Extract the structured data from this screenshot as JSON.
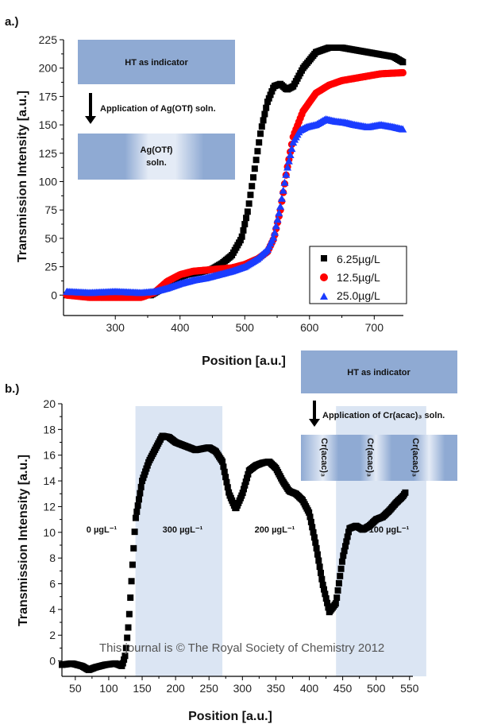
{
  "panel_a": {
    "label": "a.)",
    "inset": {
      "top_text": "HT as indicator",
      "arrow_text": "Application of Ag(OTf) soln.",
      "bottom_text_1": "Ag(OTf)",
      "bottom_text_2": "soln."
    }
  },
  "panel_b": {
    "label": "b.)",
    "inset": {
      "top_text": "HT as indicator",
      "arrow_text": "Application of Cr(acac)₃ soln.",
      "strip_label": "Cr(acac)₃"
    },
    "concentration_labels": [
      "0 µgL⁻¹",
      "300 µgL⁻¹",
      "200 µgL⁻¹",
      "100 µgL⁻¹"
    ]
  },
  "watermark": "This journal is © The Royal Society of Chemistry 2012",
  "colors": {
    "black": "#000000",
    "red": "#ff0000",
    "blue": "#1a3cff",
    "inset_fill": "#8faad3",
    "band_fill": "#dbe5f3"
  },
  "chart_data": [
    {
      "type": "scatter",
      "xlabel": "Position [a.u.]",
      "ylabel": "Transmission Intensity [a.u.]",
      "xlim": [
        220,
        745
      ],
      "ylim": [
        -18,
        225
      ],
      "xticks": [
        300,
        400,
        500,
        600,
        700
      ],
      "yticks": [
        0,
        25,
        50,
        75,
        100,
        125,
        150,
        175,
        200,
        225
      ],
      "grid": false,
      "legend_position": "bottom-right",
      "series": [
        {
          "name": "6.25µg/L",
          "marker": "square",
          "color": "#000000",
          "points": [
            [
              225,
              0
            ],
            [
              260,
              0
            ],
            [
              300,
              0
            ],
            [
              340,
              0
            ],
            [
              355,
              0
            ],
            [
              370,
              5
            ],
            [
              390,
              13
            ],
            [
              410,
              18
            ],
            [
              430,
              20
            ],
            [
              450,
              23
            ],
            [
              465,
              28
            ],
            [
              480,
              35
            ],
            [
              495,
              50
            ],
            [
              505,
              75
            ],
            [
              515,
              110
            ],
            [
              525,
              145
            ],
            [
              535,
              170
            ],
            [
              545,
              184
            ],
            [
              555,
              186
            ],
            [
              565,
              181
            ],
            [
              575,
              184
            ],
            [
              590,
              200
            ],
            [
              610,
              214
            ],
            [
              630,
              218
            ],
            [
              650,
              218
            ],
            [
              670,
              216
            ],
            [
              700,
              213
            ],
            [
              730,
              210
            ],
            [
              745,
              205
            ]
          ]
        },
        {
          "name": "12.5µg/L",
          "marker": "circle",
          "color": "#ff0000",
          "points": [
            [
              225,
              0
            ],
            [
              260,
              -2
            ],
            [
              300,
              -2
            ],
            [
              340,
              -2
            ],
            [
              360,
              2
            ],
            [
              380,
              12
            ],
            [
              400,
              18
            ],
            [
              420,
              21
            ],
            [
              440,
              22
            ],
            [
              460,
              23
            ],
            [
              480,
              24
            ],
            [
              500,
              27
            ],
            [
              520,
              32
            ],
            [
              535,
              38
            ],
            [
              545,
              50
            ],
            [
              555,
              75
            ],
            [
              565,
              110
            ],
            [
              575,
              140
            ],
            [
              590,
              162
            ],
            [
              610,
              178
            ],
            [
              630,
              185
            ],
            [
              650,
              189
            ],
            [
              680,
              192
            ],
            [
              710,
              195
            ],
            [
              745,
              196
            ]
          ]
        },
        {
          "name": "25.0µg/L",
          "marker": "triangle",
          "color": "#1a3cff",
          "points": [
            [
              225,
              3
            ],
            [
              260,
              2
            ],
            [
              300,
              3
            ],
            [
              340,
              2
            ],
            [
              360,
              3
            ],
            [
              380,
              6
            ],
            [
              400,
              10
            ],
            [
              420,
              13
            ],
            [
              440,
              15
            ],
            [
              460,
              18
            ],
            [
              480,
              21
            ],
            [
              500,
              25
            ],
            [
              520,
              32
            ],
            [
              535,
              40
            ],
            [
              545,
              52
            ],
            [
              555,
              78
            ],
            [
              565,
              110
            ],
            [
              575,
              135
            ],
            [
              585,
              145
            ],
            [
              595,
              148
            ],
            [
              610,
              150
            ],
            [
              625,
              155
            ],
            [
              640,
              153
            ],
            [
              655,
              152
            ],
            [
              670,
              150
            ],
            [
              690,
              148
            ],
            [
              710,
              150
            ],
            [
              730,
              148
            ],
            [
              745,
              146
            ]
          ]
        }
      ]
    },
    {
      "type": "scatter",
      "xlabel": "Position [a.u.]",
      "ylabel": "Transmission Intensity [a.u.]",
      "xlim": [
        30,
        555
      ],
      "ylim": [
        -1.2,
        20
      ],
      "xticks": [
        50,
        100,
        150,
        200,
        250,
        300,
        350,
        400,
        450,
        500,
        550
      ],
      "yticks": [
        0,
        2,
        4,
        6,
        8,
        10,
        12,
        14,
        16,
        18,
        20
      ],
      "grid": false,
      "shaded_bands": [
        [
          140,
          270
        ],
        [
          440,
          575
        ]
      ],
      "series": [
        {
          "name": "",
          "marker": "square",
          "color": "#000000",
          "points": [
            [
              30,
              -0.3
            ],
            [
              45,
              -0.2
            ],
            [
              60,
              -0.4
            ],
            [
              70,
              -0.7
            ],
            [
              80,
              -0.5
            ],
            [
              95,
              -0.3
            ],
            [
              110,
              -0.2
            ],
            [
              120,
              -0.4
            ],
            [
              125,
              0.5
            ],
            [
              130,
              3
            ],
            [
              135,
              7
            ],
            [
              140,
              11
            ],
            [
              150,
              14
            ],
            [
              160,
              15.5
            ],
            [
              170,
              16.5
            ],
            [
              180,
              17.5
            ],
            [
              190,
              17.4
            ],
            [
              200,
              17
            ],
            [
              210,
              16.8
            ],
            [
              220,
              16.6
            ],
            [
              230,
              16.4
            ],
            [
              240,
              16.5
            ],
            [
              250,
              16.6
            ],
            [
              260,
              16.3
            ],
            [
              270,
              15.5
            ],
            [
              280,
              13
            ],
            [
              290,
              11.8
            ],
            [
              300,
              13
            ],
            [
              310,
              14.8
            ],
            [
              320,
              15.2
            ],
            [
              330,
              15.4
            ],
            [
              340,
              15.5
            ],
            [
              350,
              15
            ],
            [
              360,
              14
            ],
            [
              370,
              13.2
            ],
            [
              380,
              13
            ],
            [
              390,
              12.5
            ],
            [
              400,
              11.5
            ],
            [
              410,
              9
            ],
            [
              420,
              6
            ],
            [
              430,
              3.8
            ],
            [
              440,
              4.5
            ],
            [
              450,
              8
            ],
            [
              460,
              10.3
            ],
            [
              470,
              10.5
            ],
            [
              480,
              10.2
            ],
            [
              490,
              10.5
            ],
            [
              500,
              11
            ],
            [
              510,
              11.2
            ],
            [
              520,
              11.7
            ],
            [
              530,
              12.3
            ],
            [
              540,
              12.8
            ],
            [
              545,
              13.2
            ]
          ]
        }
      ]
    }
  ]
}
